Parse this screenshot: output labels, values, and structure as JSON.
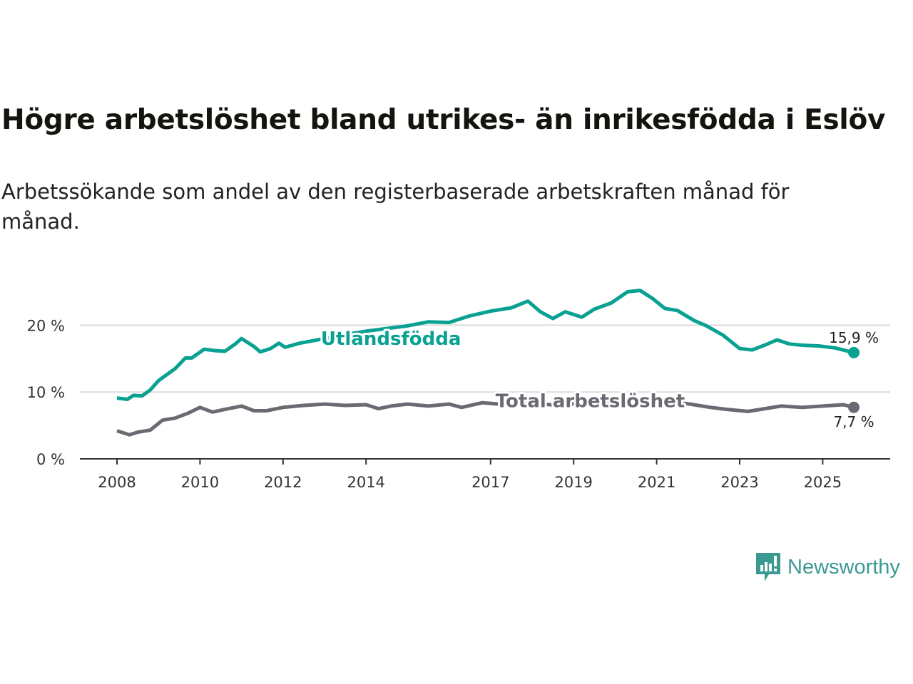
{
  "title": "Högre arbetslöshet bland utrikes- än inrikesfödda i Eslöv",
  "subtitle": "Arbetssökande som andel av den registerbaserade arbetskraften månad för månad.",
  "logo": {
    "text": "Newsworthy",
    "icon": "bar-chart-speech-bubble-icon",
    "color": "#3a9a92"
  },
  "chart_data": {
    "type": "line",
    "title": "Högre arbetslöshet bland utrikes- än inrikesfödda i Eslöv",
    "xlabel": "",
    "ylabel": "",
    "xlim": [
      2007.75,
      2026.25
    ],
    "ylim": [
      0,
      25
    ],
    "grid": true,
    "y_ticks": [
      {
        "value": 0,
        "label": "0 %"
      },
      {
        "value": 10,
        "label": "10 %"
      },
      {
        "value": 20,
        "label": "20 %"
      }
    ],
    "x_ticks": [
      {
        "value": 2008,
        "label": "2008"
      },
      {
        "value": 2010,
        "label": "2010"
      },
      {
        "value": 2012,
        "label": "2012"
      },
      {
        "value": 2014,
        "label": "2014"
      },
      {
        "value": 2017,
        "label": "2017"
      },
      {
        "value": 2019,
        "label": "2019"
      },
      {
        "value": 2021,
        "label": "2021"
      },
      {
        "value": 2023,
        "label": "2023"
      },
      {
        "value": 2025,
        "label": "2025"
      }
    ],
    "series": [
      {
        "name": "Utlandsfödda",
        "color": "#08a192",
        "label_at": [
          2014.6,
          18.0
        ],
        "end_label": "15,9 %",
        "end_label_pos": "above",
        "x": [
          2008.0,
          2008.25,
          2008.4,
          2008.6,
          2008.8,
          2009.0,
          2009.2,
          2009.4,
          2009.65,
          2009.8,
          2010.1,
          2010.35,
          2010.6,
          2010.85,
          2011.0,
          2011.3,
          2011.45,
          2011.7,
          2011.9,
          2012.05,
          2012.4,
          2013.0,
          2013.5,
          2014.0,
          2014.5,
          2015.0,
          2015.5,
          2016.0,
          2016.5,
          2017.0,
          2017.5,
          2017.9,
          2018.2,
          2018.5,
          2018.8,
          2019.2,
          2019.5,
          2019.9,
          2020.3,
          2020.6,
          2020.9,
          2021.2,
          2021.5,
          2021.9,
          2022.2,
          2022.6,
          2023.0,
          2023.3,
          2023.6,
          2023.9,
          2024.2,
          2024.5,
          2024.9,
          2025.3,
          2025.75
        ],
        "y": [
          9.1,
          8.9,
          9.5,
          9.4,
          10.3,
          11.7,
          12.6,
          13.5,
          15.1,
          15.1,
          16.4,
          16.2,
          16.1,
          17.2,
          18.0,
          16.8,
          16.0,
          16.5,
          17.3,
          16.7,
          17.3,
          18.0,
          18.6,
          19.1,
          19.5,
          19.9,
          20.5,
          20.4,
          21.4,
          22.1,
          22.6,
          23.6,
          22.0,
          21.0,
          22.0,
          21.2,
          22.4,
          23.3,
          25.0,
          25.2,
          24.0,
          22.5,
          22.2,
          20.7,
          19.9,
          18.5,
          16.5,
          16.3,
          17.0,
          17.8,
          17.2,
          17.0,
          16.9,
          16.6,
          15.9
        ]
      },
      {
        "name": "Total arbetslöshet",
        "color": "#6b6a72",
        "label_at": [
          2019.4,
          8.7
        ],
        "end_label": "7,7 %",
        "end_label_pos": "below",
        "x": [
          2008.0,
          2008.3,
          2008.5,
          2008.8,
          2009.1,
          2009.4,
          2009.7,
          2010.0,
          2010.3,
          2010.6,
          2011.0,
          2011.3,
          2011.6,
          2012.0,
          2012.5,
          2013.0,
          2013.5,
          2014.0,
          2014.3,
          2014.6,
          2015.0,
          2015.5,
          2016.0,
          2016.3,
          2016.8,
          2017.2,
          2017.7,
          2018.2,
          2018.7,
          2019.2,
          2019.7,
          2020.2,
          2020.7,
          2021.2,
          2021.8,
          2022.3,
          2022.7,
          2023.2,
          2023.5,
          2024.0,
          2024.5,
          2025.0,
          2025.5,
          2025.75
        ],
        "y": [
          4.2,
          3.6,
          4.0,
          4.3,
          5.8,
          6.1,
          6.8,
          7.7,
          7.0,
          7.4,
          7.9,
          7.2,
          7.2,
          7.7,
          8.0,
          8.2,
          8.0,
          8.1,
          7.5,
          7.9,
          8.2,
          7.9,
          8.2,
          7.7,
          8.4,
          8.2,
          8.3,
          8.2,
          8.0,
          8.4,
          8.3,
          8.8,
          8.9,
          8.7,
          8.2,
          7.7,
          7.4,
          7.1,
          7.4,
          7.9,
          7.7,
          7.9,
          8.1,
          7.7
        ]
      }
    ]
  }
}
